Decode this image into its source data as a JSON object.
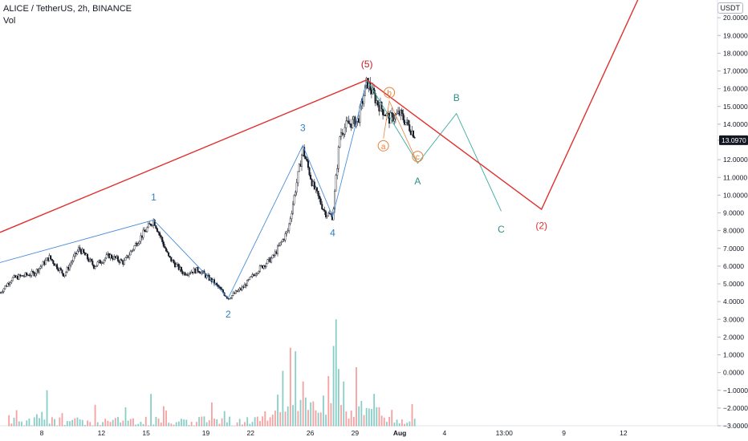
{
  "header": {
    "symbol_line": "ALICE / TetherUS, 2h, BINANCE",
    "volume_label": "Vol",
    "currency_badge": "USDT"
  },
  "colors": {
    "up": "#26a69a",
    "down": "#ef5350",
    "candle": "#131722",
    "wave_blue": "#4a90d9",
    "wave_red": "#e03030",
    "wave_teal": "#3aaa9e",
    "wave_orange": "#e8833a",
    "label_blue": "#2f7fc1",
    "label_red": "#e03030",
    "label_teal": "#2f8f86"
  },
  "chart_data": {
    "type": "candlestick",
    "y_axis": {
      "ticks": [
        "20.0000",
        "19.0000",
        "18.0000",
        "17.0000",
        "16.0000",
        "15.0000",
        "14.0000",
        "13.0970",
        "12.0000",
        "11.0000",
        "10.0000",
        "9.0000",
        "8.0000",
        "7.0000",
        "6.0000",
        "5.0000",
        "4.0000",
        "3.0000",
        "2.0000",
        "1.0000",
        "0.0000",
        "−1.0000",
        "−2.0000",
        "−3.0000"
      ],
      "tick_values": [
        20,
        19,
        18,
        17,
        16,
        15,
        14,
        13.097,
        12,
        11,
        10,
        9,
        8,
        7,
        6,
        5,
        4,
        3,
        2,
        1,
        0,
        -1,
        -2,
        -3
      ],
      "last_price": "13.0970",
      "last_price_value": 13.097,
      "range": [
        -3,
        21
      ]
    },
    "x_axis": {
      "ticks": [
        "8",
        "12",
        "15",
        "19",
        "22",
        "26",
        "29",
        "Aug",
        "4",
        "13:00",
        "9",
        "12"
      ],
      "tick_days": [
        8,
        12,
        15,
        19,
        22,
        26,
        29,
        32,
        35,
        39,
        43,
        47
      ],
      "range_days": [
        5.2,
        53.3
      ]
    },
    "price_path": [
      [
        5.2,
        4.5
      ],
      [
        6,
        5.3
      ],
      [
        7.5,
        5.6
      ],
      [
        8.5,
        6.5
      ],
      [
        9.5,
        5.5
      ],
      [
        10.5,
        7.0
      ],
      [
        11.5,
        6.0
      ],
      [
        12.5,
        6.6
      ],
      [
        13.5,
        6.2
      ],
      [
        14.5,
        7.5
      ],
      [
        15.5,
        8.6
      ],
      [
        16.5,
        6.5
      ],
      [
        17.5,
        5.6
      ],
      [
        18.5,
        5.8
      ],
      [
        19.5,
        5.1
      ],
      [
        20.5,
        4.2
      ],
      [
        21.5,
        4.8
      ],
      [
        22.5,
        5.8
      ],
      [
        23.5,
        6.5
      ],
      [
        24.5,
        8.0
      ],
      [
        25.5,
        12.6
      ],
      [
        26.2,
        10.5
      ],
      [
        27,
        9.0
      ],
      [
        27.5,
        8.8
      ],
      [
        28,
        13.5
      ],
      [
        28.5,
        14.0
      ],
      [
        29.2,
        14.2
      ],
      [
        29.8,
        16.4
      ],
      [
        30.5,
        15.2
      ],
      [
        31.3,
        14.3
      ],
      [
        32,
        14.6
      ],
      [
        33,
        13.4
      ]
    ],
    "elliott_waves": {
      "blue_impulse": {
        "labels": [
          "1",
          "2",
          "3",
          "4",
          "(5)"
        ],
        "points": [
          [
            5.2,
            6.2
          ],
          [
            15.5,
            8.6
          ],
          [
            20.5,
            4.2
          ],
          [
            25.5,
            12.8
          ],
          [
            27.5,
            8.8
          ],
          [
            29.8,
            16.5
          ]
        ]
      },
      "red_primary": {
        "labels": [
          "(5)",
          "(2)"
        ],
        "points": [
          [
            5.2,
            7.9
          ],
          [
            29.8,
            16.5
          ],
          [
            41.5,
            9.2
          ],
          [
            48.5,
            22.0
          ]
        ]
      },
      "teal_correction": {
        "labels": [
          "A",
          "B",
          "C"
        ],
        "points": [
          [
            29.8,
            16.5
          ],
          [
            33.2,
            11.8
          ],
          [
            35.8,
            14.6
          ],
          [
            38.8,
            9.1
          ]
        ]
      },
      "orange_sub": {
        "labels": [
          "a",
          "b",
          "c"
        ],
        "points": [
          [
            30.9,
            13.2
          ],
          [
            31.3,
            15.3
          ],
          [
            33.2,
            11.8
          ]
        ]
      }
    },
    "volume": {
      "axis_values": [
        3,
        2,
        1,
        0,
        -1,
        -2,
        -3
      ],
      "spikes": [
        [
          8.3,
          -1.0
        ],
        [
          15.3,
          -1.2
        ],
        [
          24.2,
          0.1
        ],
        [
          24.6,
          1.4
        ],
        [
          25.0,
          1.2
        ],
        [
          25.6,
          -0.5
        ],
        [
          26.9,
          -1.3
        ],
        [
          27.2,
          -0.2
        ],
        [
          27.5,
          1.5
        ],
        [
          27.7,
          3.0
        ],
        [
          27.9,
          0.2
        ],
        [
          28.3,
          -0.5
        ],
        [
          29.1,
          0.3
        ],
        [
          29.4,
          -1.6
        ],
        [
          30.3,
          -1.2
        ]
      ]
    }
  }
}
